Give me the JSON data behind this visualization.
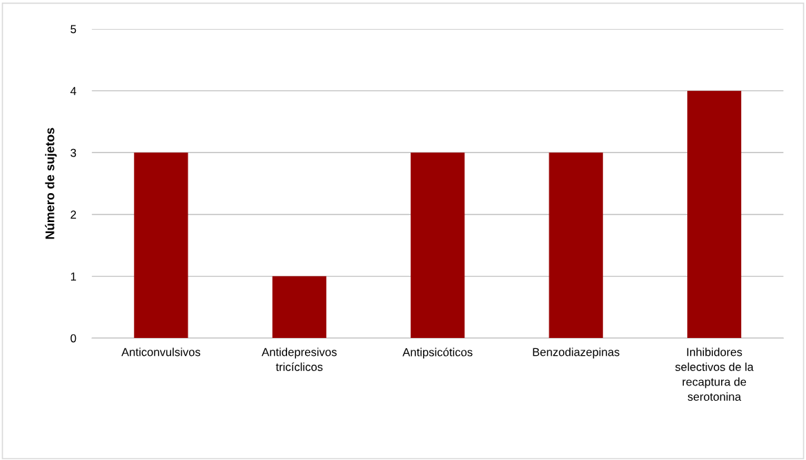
{
  "chart_data": {
    "type": "bar",
    "ylabel": "Número de sujetos",
    "categories": [
      "Anticonvulsivos",
      "Antidepresivos\ntricíclicos",
      "Antipsicóticos",
      "Benzodiazepinas",
      "Inhibidores\nselectivos de la\nrecaptura de\nserotonina"
    ],
    "values": [
      3,
      1,
      3,
      3,
      4
    ],
    "color": "#990000",
    "ylim": [
      0,
      5
    ],
    "yticks": [
      0,
      1,
      2,
      3,
      4,
      5
    ],
    "grid": "y",
    "legend": false
  }
}
